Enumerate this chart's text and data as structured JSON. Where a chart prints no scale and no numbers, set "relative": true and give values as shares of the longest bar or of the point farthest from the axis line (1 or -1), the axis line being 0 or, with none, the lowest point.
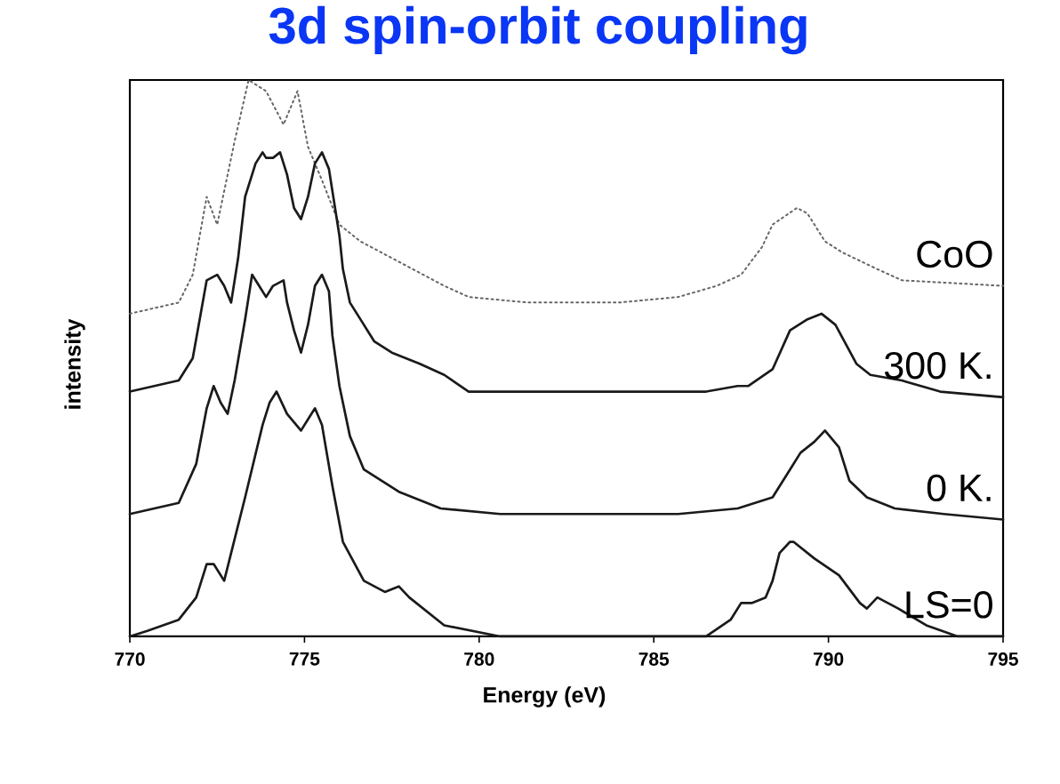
{
  "chart_data": {
    "type": "line",
    "title": "3d spin-orbit coupling",
    "xlabel": "Energy (eV)",
    "ylabel": "intensity",
    "relative": true,
    "xlim": [
      770,
      795
    ],
    "xticks": [
      770,
      775,
      780,
      785,
      790,
      795
    ],
    "tick_labels": "x",
    "line_style": "solid",
    "series": [
      {
        "name": "CoO",
        "color": "#666666",
        "line_style": "dotted",
        "x": [
          770,
          771.4,
          771.8,
          772.2,
          772.5,
          773.0,
          773.4,
          773.9,
          774.4,
          774.8,
          775.1,
          775.5,
          776.0,
          776.6,
          777.8,
          779.0,
          779.7,
          781.4,
          784.0,
          785.7,
          786.8,
          787.5,
          788.1,
          788.4,
          789.1,
          789.4,
          789.9,
          790.4,
          791.4,
          792.1,
          795
        ],
        "values": [
          0.58,
          0.6,
          0.65,
          0.79,
          0.74,
          0.89,
          1.0,
          0.98,
          0.92,
          0.98,
          0.88,
          0.82,
          0.74,
          0.71,
          0.67,
          0.63,
          0.61,
          0.6,
          0.6,
          0.61,
          0.63,
          0.65,
          0.7,
          0.74,
          0.77,
          0.76,
          0.71,
          0.69,
          0.66,
          0.64,
          0.63
        ]
      },
      {
        "name": "300 K.",
        "color": "#1a1a1a",
        "x": [
          770,
          771.4,
          771.8,
          772.0,
          772.2,
          772.5,
          772.7,
          772.9,
          773.1,
          773.3,
          773.6,
          773.8,
          773.9,
          774.1,
          774.3,
          774.5,
          774.7,
          774.9,
          775.1,
          775.3,
          775.5,
          775.7,
          775.8,
          776.0,
          776.1,
          776.3,
          776.6,
          777.0,
          777.5,
          778.3,
          779.0,
          779.7,
          783.1,
          786.5,
          787.4,
          787.7,
          788.4,
          788.9,
          789.4,
          789.8,
          790.2,
          790.8,
          791.2,
          792.1,
          793.2,
          795
        ],
        "values": [
          0.44,
          0.46,
          0.5,
          0.57,
          0.64,
          0.65,
          0.63,
          0.6,
          0.68,
          0.79,
          0.85,
          0.87,
          0.86,
          0.86,
          0.87,
          0.83,
          0.77,
          0.75,
          0.79,
          0.85,
          0.87,
          0.84,
          0.8,
          0.72,
          0.66,
          0.6,
          0.57,
          0.53,
          0.51,
          0.49,
          0.47,
          0.44,
          0.44,
          0.44,
          0.45,
          0.45,
          0.48,
          0.55,
          0.57,
          0.58,
          0.56,
          0.49,
          0.47,
          0.46,
          0.44,
          0.43
        ]
      },
      {
        "name": "0 K.",
        "color": "#1a1a1a",
        "x": [
          770,
          771.4,
          771.9,
          772.2,
          772.4,
          772.6,
          772.8,
          773.0,
          773.3,
          773.5,
          773.7,
          773.9,
          774.1,
          774.4,
          774.5,
          774.7,
          774.9,
          775.1,
          775.3,
          775.5,
          775.7,
          775.8,
          776.0,
          776.3,
          776.7,
          777.7,
          778.9,
          780.6,
          785.7,
          787.4,
          788.4,
          788.9,
          789.2,
          789.6,
          789.9,
          790.3,
          790.6,
          791.1,
          791.9,
          793.3,
          795
        ],
        "values": [
          0.22,
          0.24,
          0.31,
          0.41,
          0.45,
          0.42,
          0.4,
          0.46,
          0.57,
          0.65,
          0.63,
          0.61,
          0.63,
          0.64,
          0.6,
          0.55,
          0.51,
          0.56,
          0.63,
          0.65,
          0.62,
          0.54,
          0.45,
          0.36,
          0.3,
          0.26,
          0.23,
          0.22,
          0.22,
          0.23,
          0.25,
          0.3,
          0.33,
          0.35,
          0.37,
          0.34,
          0.28,
          0.25,
          0.23,
          0.22,
          0.21
        ]
      },
      {
        "name": "LS=0",
        "color": "#1a1a1a",
        "x": [
          770,
          770.5,
          771.4,
          771.9,
          772.2,
          772.4,
          772.7,
          772.9,
          773.3,
          773.8,
          774.0,
          774.2,
          774.5,
          774.9,
          775.1,
          775.3,
          775.5,
          775.8,
          776.1,
          776.7,
          777.3,
          777.7,
          778.0,
          779.0,
          780.6,
          786.5,
          787.2,
          787.5,
          787.8,
          788.2,
          788.4,
          788.6,
          788.9,
          789.0,
          789.6,
          790.3,
          790.9,
          791.1,
          791.4,
          792.0,
          792.8,
          793.7,
          795
        ],
        "values": [
          0,
          0.01,
          0.03,
          0.07,
          0.13,
          0.13,
          0.1,
          0.15,
          0.25,
          0.38,
          0.42,
          0.44,
          0.4,
          0.37,
          0.39,
          0.41,
          0.38,
          0.27,
          0.17,
          0.1,
          0.08,
          0.09,
          0.07,
          0.02,
          0,
          0,
          0.03,
          0.06,
          0.06,
          0.07,
          0.1,
          0.15,
          0.17,
          0.17,
          0.14,
          0.11,
          0.06,
          0.05,
          0.07,
          0.05,
          0.02,
          0,
          0
        ]
      }
    ]
  }
}
